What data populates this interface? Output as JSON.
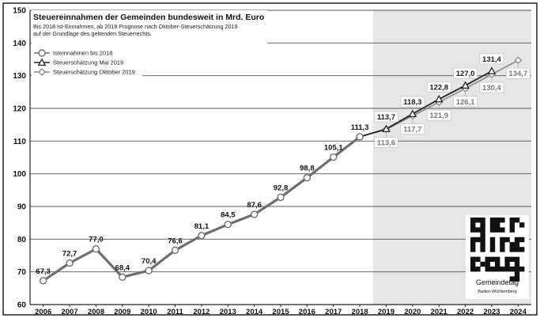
{
  "chart_data": {
    "type": "line",
    "title": "Steuereinnahmen der Gemeinden bundesweit in Mrd. Euro",
    "subtitle_lines": [
      "Bis 2018 Ist-Einnahmen, ab 2019 Prognose nach Oktober-Steuerschätzung 2019",
      "auf der Grundlage des geltenden Steuerrechts."
    ],
    "xlabel": "",
    "ylabel": "",
    "ylim": [
      60,
      150
    ],
    "yticks": [
      60,
      70,
      80,
      90,
      100,
      110,
      120,
      130,
      140,
      150
    ],
    "ytick_labels": [
      "60",
      "70",
      "80",
      "90",
      "100",
      "110",
      "120",
      "130",
      "140",
      "150"
    ],
    "categories": [
      "2006",
      "2007",
      "2008",
      "2009",
      "2010",
      "2011",
      "2012",
      "2013",
      "2014",
      "2015",
      "2016",
      "2017",
      "2018",
      "2019",
      "2020",
      "2021",
      "2022",
      "2023",
      "2024"
    ],
    "forecast_region": {
      "from": "2019",
      "to": "2024"
    },
    "grid": true,
    "legend_position": "top-left",
    "series": [
      {
        "name": "Isteinnahmen bis 2018",
        "color": "#6e6e6e",
        "marker": "circle",
        "x": [
          "2006",
          "2007",
          "2008",
          "2009",
          "2010",
          "2011",
          "2012",
          "2013",
          "2014",
          "2015",
          "2016",
          "2017",
          "2018"
        ],
        "values": [
          67.3,
          72.7,
          77.0,
          68.4,
          70.4,
          76.6,
          81.1,
          84.5,
          87.6,
          92.8,
          98.8,
          105.1,
          111.3
        ],
        "labels": [
          "67,3",
          "72,7",
          "77,0",
          "68,4",
          "70,4",
          "76,6",
          "81,1",
          "84,5",
          "87,6",
          "92,8",
          "98,8",
          "105,1",
          "111,3"
        ]
      },
      {
        "name": "Steuerschätzung Mai 2019",
        "color": "#222222",
        "marker": "triangle",
        "x": [
          "2018",
          "2019",
          "2020",
          "2021",
          "2022",
          "2023"
        ],
        "values": [
          111.3,
          113.7,
          118.3,
          122.8,
          127.0,
          131.4
        ],
        "labels": [
          "",
          "113,7",
          "118,3",
          "122,8",
          "127,0",
          "131,4"
        ]
      },
      {
        "name": "Steuerschätzung Oktober 2019",
        "color": "#8a8a8a",
        "marker": "diamond",
        "x": [
          "2018",
          "2019",
          "2020",
          "2021",
          "2022",
          "2023",
          "2024"
        ],
        "values": [
          111.3,
          113.6,
          117.7,
          121.9,
          126.1,
          130.4,
          134.7
        ],
        "labels": [
          "",
          "113,6",
          "117,7",
          "121,9",
          "126,1",
          "130,4",
          "134,7"
        ]
      }
    ]
  },
  "logo": {
    "name": "Gemeindetag",
    "subname": "Baden-Württemberg",
    "lettering": "gemeindetag"
  }
}
